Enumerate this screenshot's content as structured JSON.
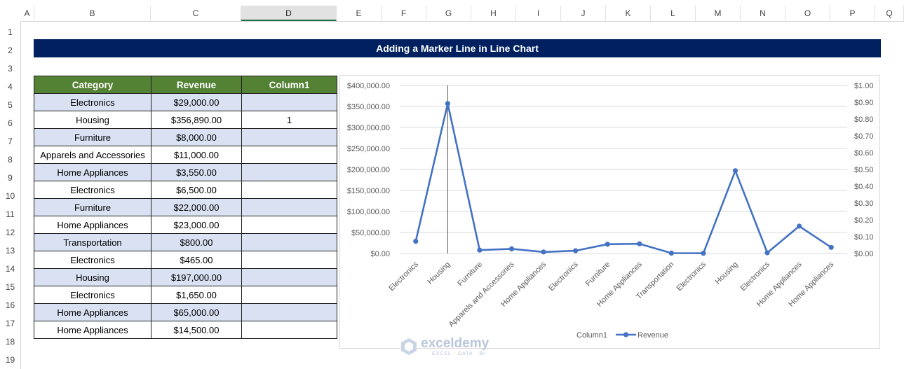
{
  "columns": [
    "A",
    "B",
    "C",
    "D",
    "E",
    "F",
    "G",
    "H",
    "I",
    "J",
    "K",
    "L",
    "M",
    "N",
    "O",
    "P",
    "Q"
  ],
  "rows": [
    "1",
    "2",
    "3",
    "4",
    "5",
    "6",
    "7",
    "8",
    "9",
    "10",
    "11",
    "12",
    "13",
    "14",
    "15",
    "16",
    "17",
    "18",
    "19"
  ],
  "title": "Adding a Marker Line in Line Chart",
  "table": {
    "headers": [
      "Category",
      "Revenue",
      "Column1"
    ],
    "rows": [
      {
        "category": "Electronics",
        "revenue": "$29,000.00",
        "column1": ""
      },
      {
        "category": "Housing",
        "revenue": "$356,890.00",
        "column1": "1"
      },
      {
        "category": "Furniture",
        "revenue": "$8,000.00",
        "column1": ""
      },
      {
        "category": "Apparels and Accessories",
        "revenue": "$11,000.00",
        "column1": ""
      },
      {
        "category": "Home Appliances",
        "revenue": "$3,550.00",
        "column1": ""
      },
      {
        "category": "Electronics",
        "revenue": "$6,500.00",
        "column1": ""
      },
      {
        "category": "Furniture",
        "revenue": "$22,000.00",
        "column1": ""
      },
      {
        "category": "Home Appliances",
        "revenue": "$23,000.00",
        "column1": ""
      },
      {
        "category": "Transportation",
        "revenue": "$800.00",
        "column1": ""
      },
      {
        "category": "Electronics",
        "revenue": "$465.00",
        "column1": ""
      },
      {
        "category": "Housing",
        "revenue": "$197,000.00",
        "column1": ""
      },
      {
        "category": "Electronics",
        "revenue": "$1,650.00",
        "column1": ""
      },
      {
        "category": "Home Appliances",
        "revenue": "$65,000.00",
        "column1": ""
      },
      {
        "category": "Home Appliances",
        "revenue": "$14,500.00",
        "column1": ""
      }
    ]
  },
  "chart_data": {
    "type": "line",
    "categories": [
      "Electronics",
      "Housing",
      "Furniture",
      "Apparels and Accessories",
      "Home Appliances",
      "Electronics",
      "Furniture",
      "Home Appliances",
      "Transportation",
      "Electronics",
      "Housing",
      "Electronics",
      "Home Appliances",
      "Home Appliances"
    ],
    "series": [
      {
        "name": "Revenue",
        "axis": "primary",
        "values": [
          29000,
          356890,
          8000,
          11000,
          3550,
          6500,
          22000,
          23000,
          800,
          465,
          197000,
          1650,
          65000,
          14500
        ]
      },
      {
        "name": "Column1",
        "axis": "secondary",
        "values": [
          null,
          1,
          null,
          null,
          null,
          null,
          null,
          null,
          null,
          null,
          null,
          null,
          null,
          null
        ]
      }
    ],
    "y_ticks": [
      "$0.00",
      "$50,000.00",
      "$100,000.00",
      "$150,000.00",
      "$200,000.00",
      "$250,000.00",
      "$300,000.00",
      "$350,000.00",
      "$400,000.00"
    ],
    "y2_ticks": [
      "$0.00",
      "$0.10",
      "$0.20",
      "$0.30",
      "$0.40",
      "$0.50",
      "$0.60",
      "$0.70",
      "$0.80",
      "$0.90",
      "$1.00"
    ],
    "ylim": [
      0,
      400000
    ],
    "y2lim": [
      0,
      1
    ],
    "legend": [
      "Column1",
      "Revenue"
    ],
    "legend_position": "bottom",
    "grid": true,
    "line_color": "#4472c4",
    "marker_line_color": "#595959"
  },
  "watermark": {
    "name": "exceldemy",
    "sub": "EXCEL · DATA · BI"
  }
}
